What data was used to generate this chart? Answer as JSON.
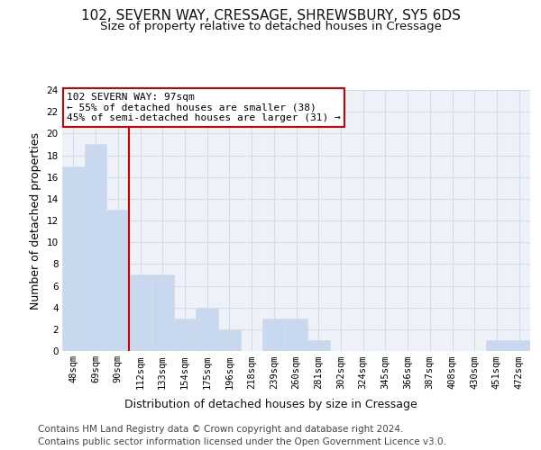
{
  "title1": "102, SEVERN WAY, CRESSAGE, SHREWSBURY, SY5 6DS",
  "title2": "Size of property relative to detached houses in Cressage",
  "xlabel": "Distribution of detached houses by size in Cressage",
  "ylabel": "Number of detached properties",
  "categories": [
    "48sqm",
    "69sqm",
    "90sqm",
    "112sqm",
    "133sqm",
    "154sqm",
    "175sqm",
    "196sqm",
    "218sqm",
    "239sqm",
    "260sqm",
    "281sqm",
    "302sqm",
    "324sqm",
    "345sqm",
    "366sqm",
    "387sqm",
    "408sqm",
    "430sqm",
    "451sqm",
    "472sqm"
  ],
  "values": [
    17,
    19,
    13,
    7,
    7,
    3,
    4,
    2,
    0,
    3,
    3,
    1,
    0,
    0,
    0,
    0,
    0,
    0,
    0,
    1,
    1
  ],
  "bar_color": "#c8d8ee",
  "grid_color": "#d4dcea",
  "vline_color": "#cc0000",
  "vline_index": 2,
  "annotation_text": "102 SEVERN WAY: 97sqm\n← 55% of detached houses are smaller (38)\n45% of semi-detached houses are larger (31) →",
  "annotation_box_color": "#ffffff",
  "annotation_box_edge": "#cc0000",
  "ylim": [
    0,
    24
  ],
  "yticks": [
    0,
    2,
    4,
    6,
    8,
    10,
    12,
    14,
    16,
    18,
    20,
    22,
    24
  ],
  "footer1": "Contains HM Land Registry data © Crown copyright and database right 2024.",
  "footer2": "Contains public sector information licensed under the Open Government Licence v3.0.",
  "background_color": "#eef2f8",
  "fig_bg_color": "#ffffff",
  "title_fontsize": 11,
  "subtitle_fontsize": 9.5,
  "axis_label_fontsize": 9,
  "tick_fontsize": 7.5,
  "footer_fontsize": 7.5,
  "annotation_fontsize": 8
}
